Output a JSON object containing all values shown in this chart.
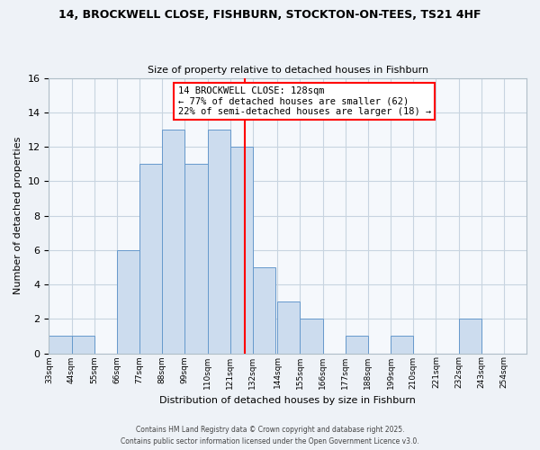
{
  "title_line1": "14, BROCKWELL CLOSE, FISHBURN, STOCKTON-ON-TEES, TS21 4HF",
  "title_line2": "Size of property relative to detached houses in Fishburn",
  "xlabel": "Distribution of detached houses by size in Fishburn",
  "ylabel": "Number of detached properties",
  "bin_labels": [
    "33sqm",
    "44sqm",
    "55sqm",
    "66sqm",
    "77sqm",
    "88sqm",
    "99sqm",
    "110sqm",
    "121sqm",
    "132sqm",
    "144sqm",
    "155sqm",
    "166sqm",
    "177sqm",
    "188sqm",
    "199sqm",
    "210sqm",
    "221sqm",
    "232sqm",
    "243sqm",
    "254sqm"
  ],
  "bin_edges": [
    33,
    44,
    55,
    66,
    77,
    88,
    99,
    110,
    121,
    132,
    144,
    155,
    166,
    177,
    188,
    199,
    210,
    221,
    232,
    243,
    254
  ],
  "bar_heights": [
    1,
    1,
    0,
    6,
    11,
    13,
    11,
    13,
    12,
    5,
    3,
    2,
    0,
    1,
    0,
    1,
    0,
    0,
    2,
    0,
    0
  ],
  "bar_color": "#ccdcee",
  "bar_edge_color": "#6699cc",
  "reference_line_x": 128,
  "reference_line_color": "red",
  "ylim": [
    0,
    16
  ],
  "yticks": [
    0,
    2,
    4,
    6,
    8,
    10,
    12,
    14,
    16
  ],
  "annotation_title": "14 BROCKWELL CLOSE: 128sqm",
  "annotation_line1": "← 77% of detached houses are smaller (62)",
  "annotation_line2": "22% of semi-detached houses are larger (18) →",
  "annotation_box_color": "#ffffff",
  "annotation_box_edge": "red",
  "footer_line1": "Contains HM Land Registry data © Crown copyright and database right 2025.",
  "footer_line2": "Contains public sector information licensed under the Open Government Licence v3.0.",
  "bg_color": "#eef2f7",
  "plot_bg_color": "#f5f8fc",
  "grid_color": "#c8d4e0"
}
